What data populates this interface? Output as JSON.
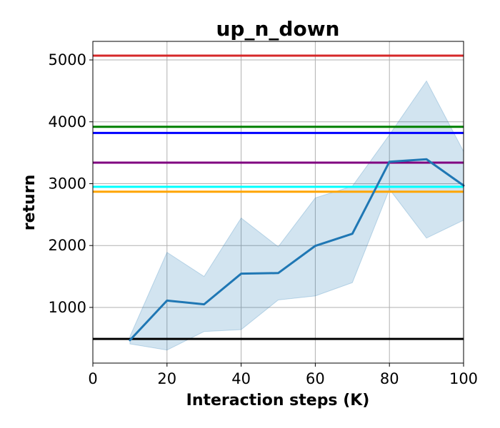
{
  "chart_data": {
    "type": "line",
    "title": "up_n_down",
    "xlabel": "Interaction steps (K)",
    "ylabel": "return",
    "xlim": [
      0,
      100
    ],
    "ylim": [
      100,
      5300
    ],
    "x_ticks": [
      0,
      20,
      40,
      60,
      80,
      100
    ],
    "y_ticks": [
      1000,
      2000,
      3000,
      4000,
      5000
    ],
    "grid": true,
    "series": [
      {
        "x": [
          10,
          20,
          30,
          40,
          50,
          60,
          70,
          80,
          90,
          100
        ],
        "values": [
          470,
          1110,
          1050,
          1545,
          1555,
          1995,
          2190,
          3355,
          3395,
          2970
        ],
        "band_lower": [
          410,
          310,
          610,
          640,
          1120,
          1185,
          1400,
          2910,
          2120,
          2410
        ],
        "band_upper": [
          530,
          1890,
          1500,
          2445,
          1980,
          2770,
          2960,
          3790,
          4660,
          3520
        ],
        "color": "#1f77b4"
      }
    ],
    "reference_lines": [
      {
        "y": 5070,
        "color": "#d62728"
      },
      {
        "y": 3920,
        "color": "#008000"
      },
      {
        "y": 3820,
        "color": "#0000ff"
      },
      {
        "y": 3340,
        "color": "#800080"
      },
      {
        "y": 2950,
        "color": "#00ffff"
      },
      {
        "y": 2870,
        "color": "#ffa500"
      },
      {
        "y": 490,
        "color": "#000000"
      }
    ]
  }
}
